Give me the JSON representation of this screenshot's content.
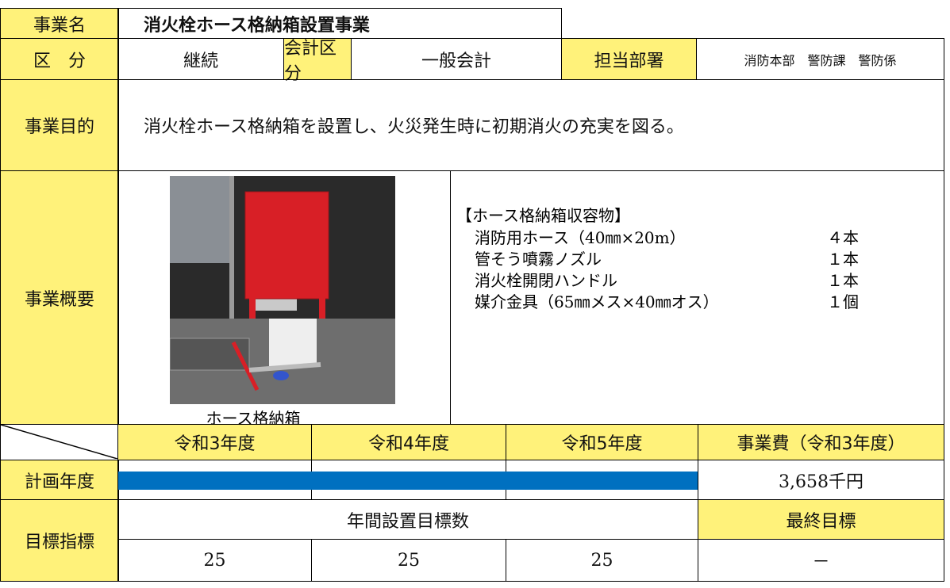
{
  "table": {
    "project_name": {
      "label": "事業名",
      "value": "消火栓ホース格納箱設置事業"
    },
    "category": {
      "label": "区　分",
      "value": "継続"
    },
    "accounting": {
      "label": "会計区分",
      "value": "一般会計"
    },
    "department": {
      "label": "担当部署",
      "value": "消防本部　警防課　警防係"
    },
    "purpose": {
      "label": "事業目的",
      "value": "消火栓ホース格納箱を設置し、火災発生時に初期消火の充実を図る。"
    },
    "overview": {
      "label": "事業概要",
      "photo_caption": "ホース格納箱",
      "list_title": "【ホース格納箱収容物】",
      "items": [
        {
          "name": "消防用ホース（40㎜×20m）",
          "quantity": "４本"
        },
        {
          "name": "管そう噴霧ノズル",
          "quantity": "１本"
        },
        {
          "name": "消火栓開閉ハンドル",
          "quantity": "１本"
        },
        {
          "name": "媒介金具（65㎜メス×40㎜オス）",
          "quantity": "１個"
        }
      ]
    },
    "schedule": {
      "years": [
        "令和3年度",
        "令和4年度",
        "令和5年度"
      ],
      "cost_label": "事業費（令和3年度）",
      "plan_label": "計画年度",
      "cost": "3,658千円"
    },
    "target": {
      "label": "目標指標",
      "annual_label": "年間設置目標数",
      "final_label": "最終目標",
      "annual_values": [
        25,
        25,
        25
      ],
      "final_value": "－"
    }
  }
}
